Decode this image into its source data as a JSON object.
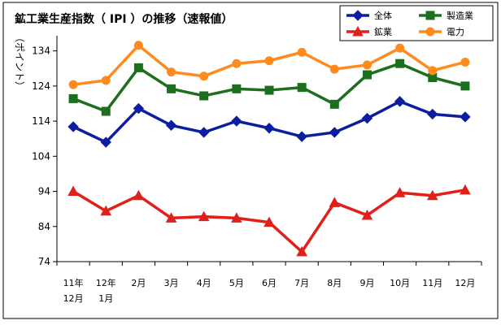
{
  "chart_data": {
    "type": "line",
    "title": "鉱工業生産指数（ IPI ）の推移（速報値）",
    "ylabel": "（ポイント）",
    "xlabel": "",
    "ylim": [
      74,
      136
    ],
    "yticks": [
      74,
      84,
      94,
      104,
      114,
      124,
      134
    ],
    "categories": [
      [
        "11年",
        "12月"
      ],
      [
        "12年",
        "1月"
      ],
      [
        "2月"
      ],
      [
        "3月"
      ],
      [
        "4月"
      ],
      [
        "5月"
      ],
      [
        "6月"
      ],
      [
        "7月"
      ],
      [
        "8月"
      ],
      [
        "9月"
      ],
      [
        "10月"
      ],
      [
        "11月"
      ],
      [
        "12月"
      ]
    ],
    "grid": false,
    "legend_position": "top-right",
    "series": [
      {
        "name": "全体",
        "color": "#0b1ea0",
        "marker": "diamond",
        "values": [
          112.4,
          108,
          117.6,
          112.8,
          110.8,
          114,
          112,
          109.6,
          110.8,
          114.8,
          119.6,
          116,
          115.2
        ]
      },
      {
        "name": "製造業",
        "color": "#1d6e1d",
        "marker": "square",
        "values": [
          120.4,
          116.8,
          129.2,
          123.2,
          121.2,
          123.2,
          122.8,
          123.6,
          118.8,
          127.2,
          130.4,
          126.4,
          124
        ]
      },
      {
        "name": "鉱業",
        "color": "#e0201a",
        "marker": "triangle",
        "values": [
          94,
          88.4,
          92.8,
          86.4,
          86.8,
          86.4,
          85.2,
          76.8,
          90.8,
          87.2,
          93.6,
          92.8,
          94.4
        ]
      },
      {
        "name": "電力",
        "color": "#ff8a1e",
        "marker": "circle",
        "values": [
          124.4,
          125.6,
          135.6,
          128,
          126.8,
          130.4,
          131.2,
          133.6,
          128.8,
          130,
          134.8,
          128.4,
          130.8
        ]
      }
    ]
  }
}
